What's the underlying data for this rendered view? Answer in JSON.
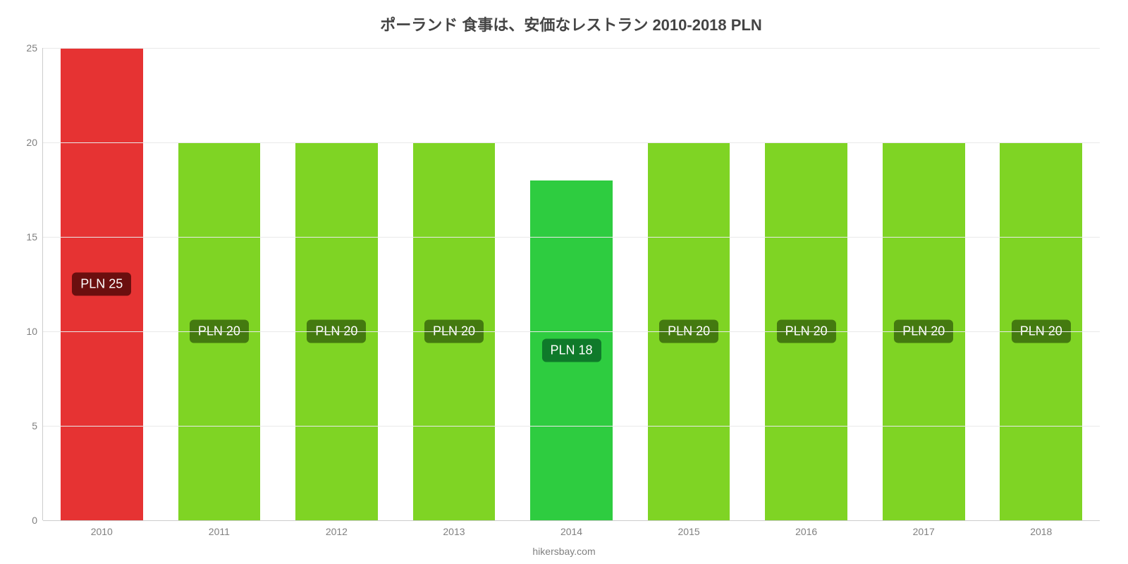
{
  "chart": {
    "type": "bar",
    "title": "ポーランド 食事は、安価なレストラン 2010-2018 PLN",
    "title_fontsize": 22,
    "title_color": "#444444",
    "background_color": "#ffffff",
    "axis_color": "#cccccc",
    "grid_color": "#e9e9e9",
    "label_color": "#808080",
    "tick_fontsize": 14,
    "ymin": 0,
    "ymax": 25,
    "ytick_step": 5,
    "yticks": [
      0,
      5,
      10,
      15,
      20,
      25
    ],
    "bar_width_pct": 70,
    "bar_label_fontsize": 18,
    "categories": [
      "2010",
      "2011",
      "2012",
      "2013",
      "2014",
      "2015",
      "2016",
      "2017",
      "2018"
    ],
    "values": [
      25,
      20,
      20,
      20,
      18,
      20,
      20,
      20,
      20
    ],
    "value_labels": [
      "PLN 25",
      "PLN 20",
      "PLN 20",
      "PLN 20",
      "PLN 18",
      "PLN 20",
      "PLN 20",
      "PLN 20",
      "PLN 20"
    ],
    "bar_colors": [
      "#e63333",
      "#7fd424",
      "#7fd424",
      "#7fd424",
      "#2ecc40",
      "#7fd424",
      "#7fd424",
      "#7fd424",
      "#7fd424"
    ],
    "label_bg_colors": [
      "#6b0f0f",
      "#447a10",
      "#447a10",
      "#447a10",
      "#0f7a2a",
      "#447a10",
      "#447a10",
      "#447a10",
      "#447a10"
    ],
    "credit": "hikersbay.com"
  }
}
